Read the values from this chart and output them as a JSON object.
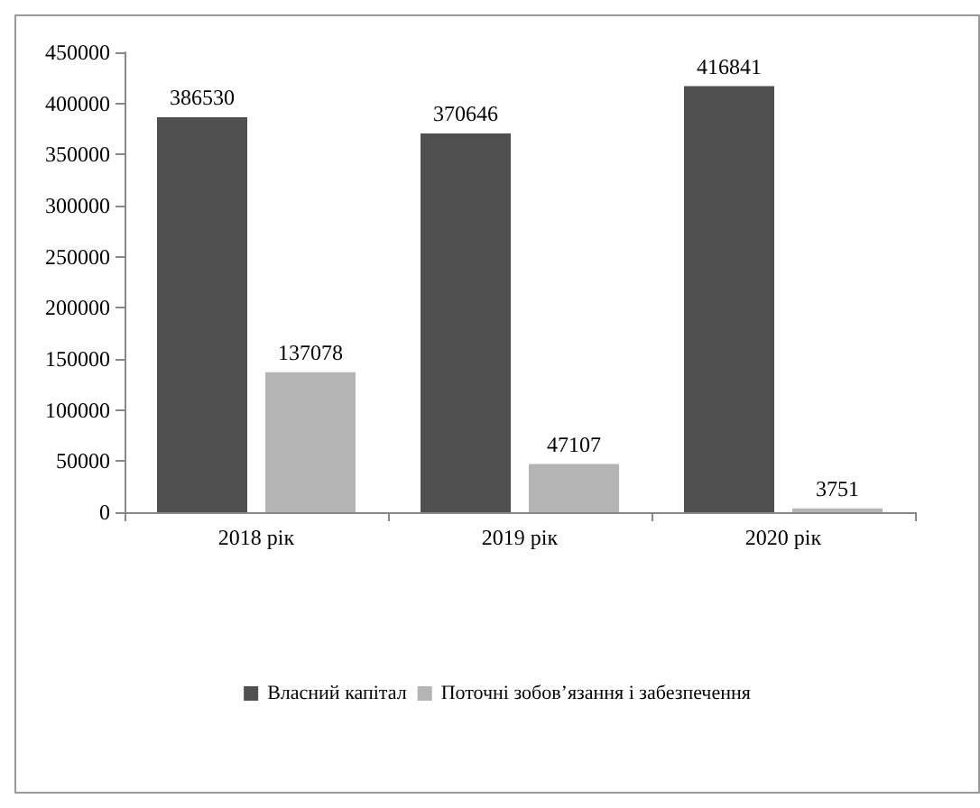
{
  "chart_data": {
    "type": "bar",
    "categories": [
      "2018 рік",
      "2019 рік",
      "2020 рік"
    ],
    "series": [
      {
        "name": "Власний капітал",
        "color": "#505050",
        "values": [
          386530,
          370646,
          416841
        ]
      },
      {
        "name": "Поточні зобов’язання і забезпечення",
        "color": "#b4b4b4",
        "values": [
          137078,
          47107,
          3751
        ]
      }
    ],
    "ylim": [
      0,
      450000
    ],
    "yticks": [
      0,
      50000,
      100000,
      150000,
      200000,
      250000,
      300000,
      350000,
      400000,
      450000
    ],
    "data_labels": true,
    "grid": false,
    "legend": "bottom"
  }
}
